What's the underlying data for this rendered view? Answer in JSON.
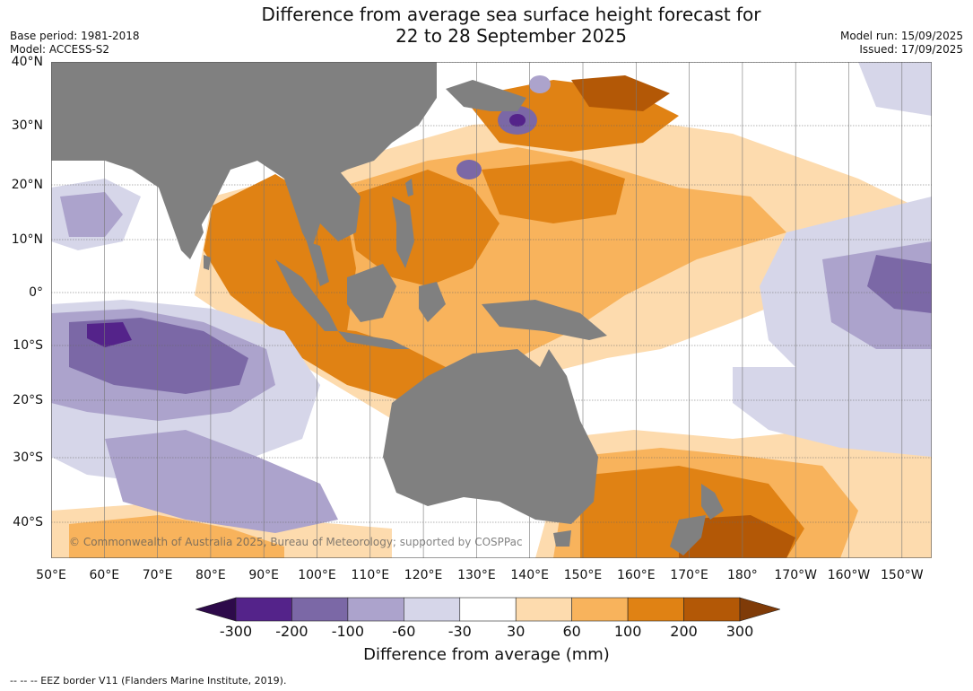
{
  "title": {
    "line1": "Difference from average sea surface height forecast for",
    "line2": "22 to 28 September 2025"
  },
  "meta": {
    "base_period": "Base period: 1981-2018",
    "model": "Model: ACCESS-S2",
    "model_run": "Model run: 15/09/2025",
    "issued": "Issued: 17/09/2025"
  },
  "map": {
    "lat_labels": [
      "40°N",
      "30°N",
      "20°N",
      "10°N",
      "0°",
      "10°S",
      "20°S",
      "30°S",
      "40°S"
    ],
    "lon_labels": [
      "50°E",
      "60°E",
      "70°E",
      "80°E",
      "90°E",
      "100°E",
      "110°E",
      "120°E",
      "130°E",
      "140°E",
      "150°E",
      "160°E",
      "170°E",
      "180°",
      "170°W",
      "160°W",
      "150°W"
    ],
    "land_color": "#808080",
    "ocean_color": "#ffffff"
  },
  "colorbar": {
    "labels": [
      "-300",
      "-200",
      "-100",
      "-60",
      "-30",
      "30",
      "60",
      "100",
      "200",
      "300"
    ],
    "colors": {
      "under": "#2d0a4a",
      "bins": [
        "#54238a",
        "#7b68a6",
        "#aca3cc",
        "#d6d6e9",
        "#ffffff",
        "#fddbae",
        "#f8b35c",
        "#e08214",
        "#b35806"
      ],
      "over": "#7f3b08"
    },
    "title": "Difference from average (mm)"
  },
  "footnote": "--  --  -- EEZ border V11 (Flanders Marine Institute, 2019).",
  "copyright": "© Commonwealth of Australia 2025, Bureau of Meteorology; supported by COSPPac"
}
